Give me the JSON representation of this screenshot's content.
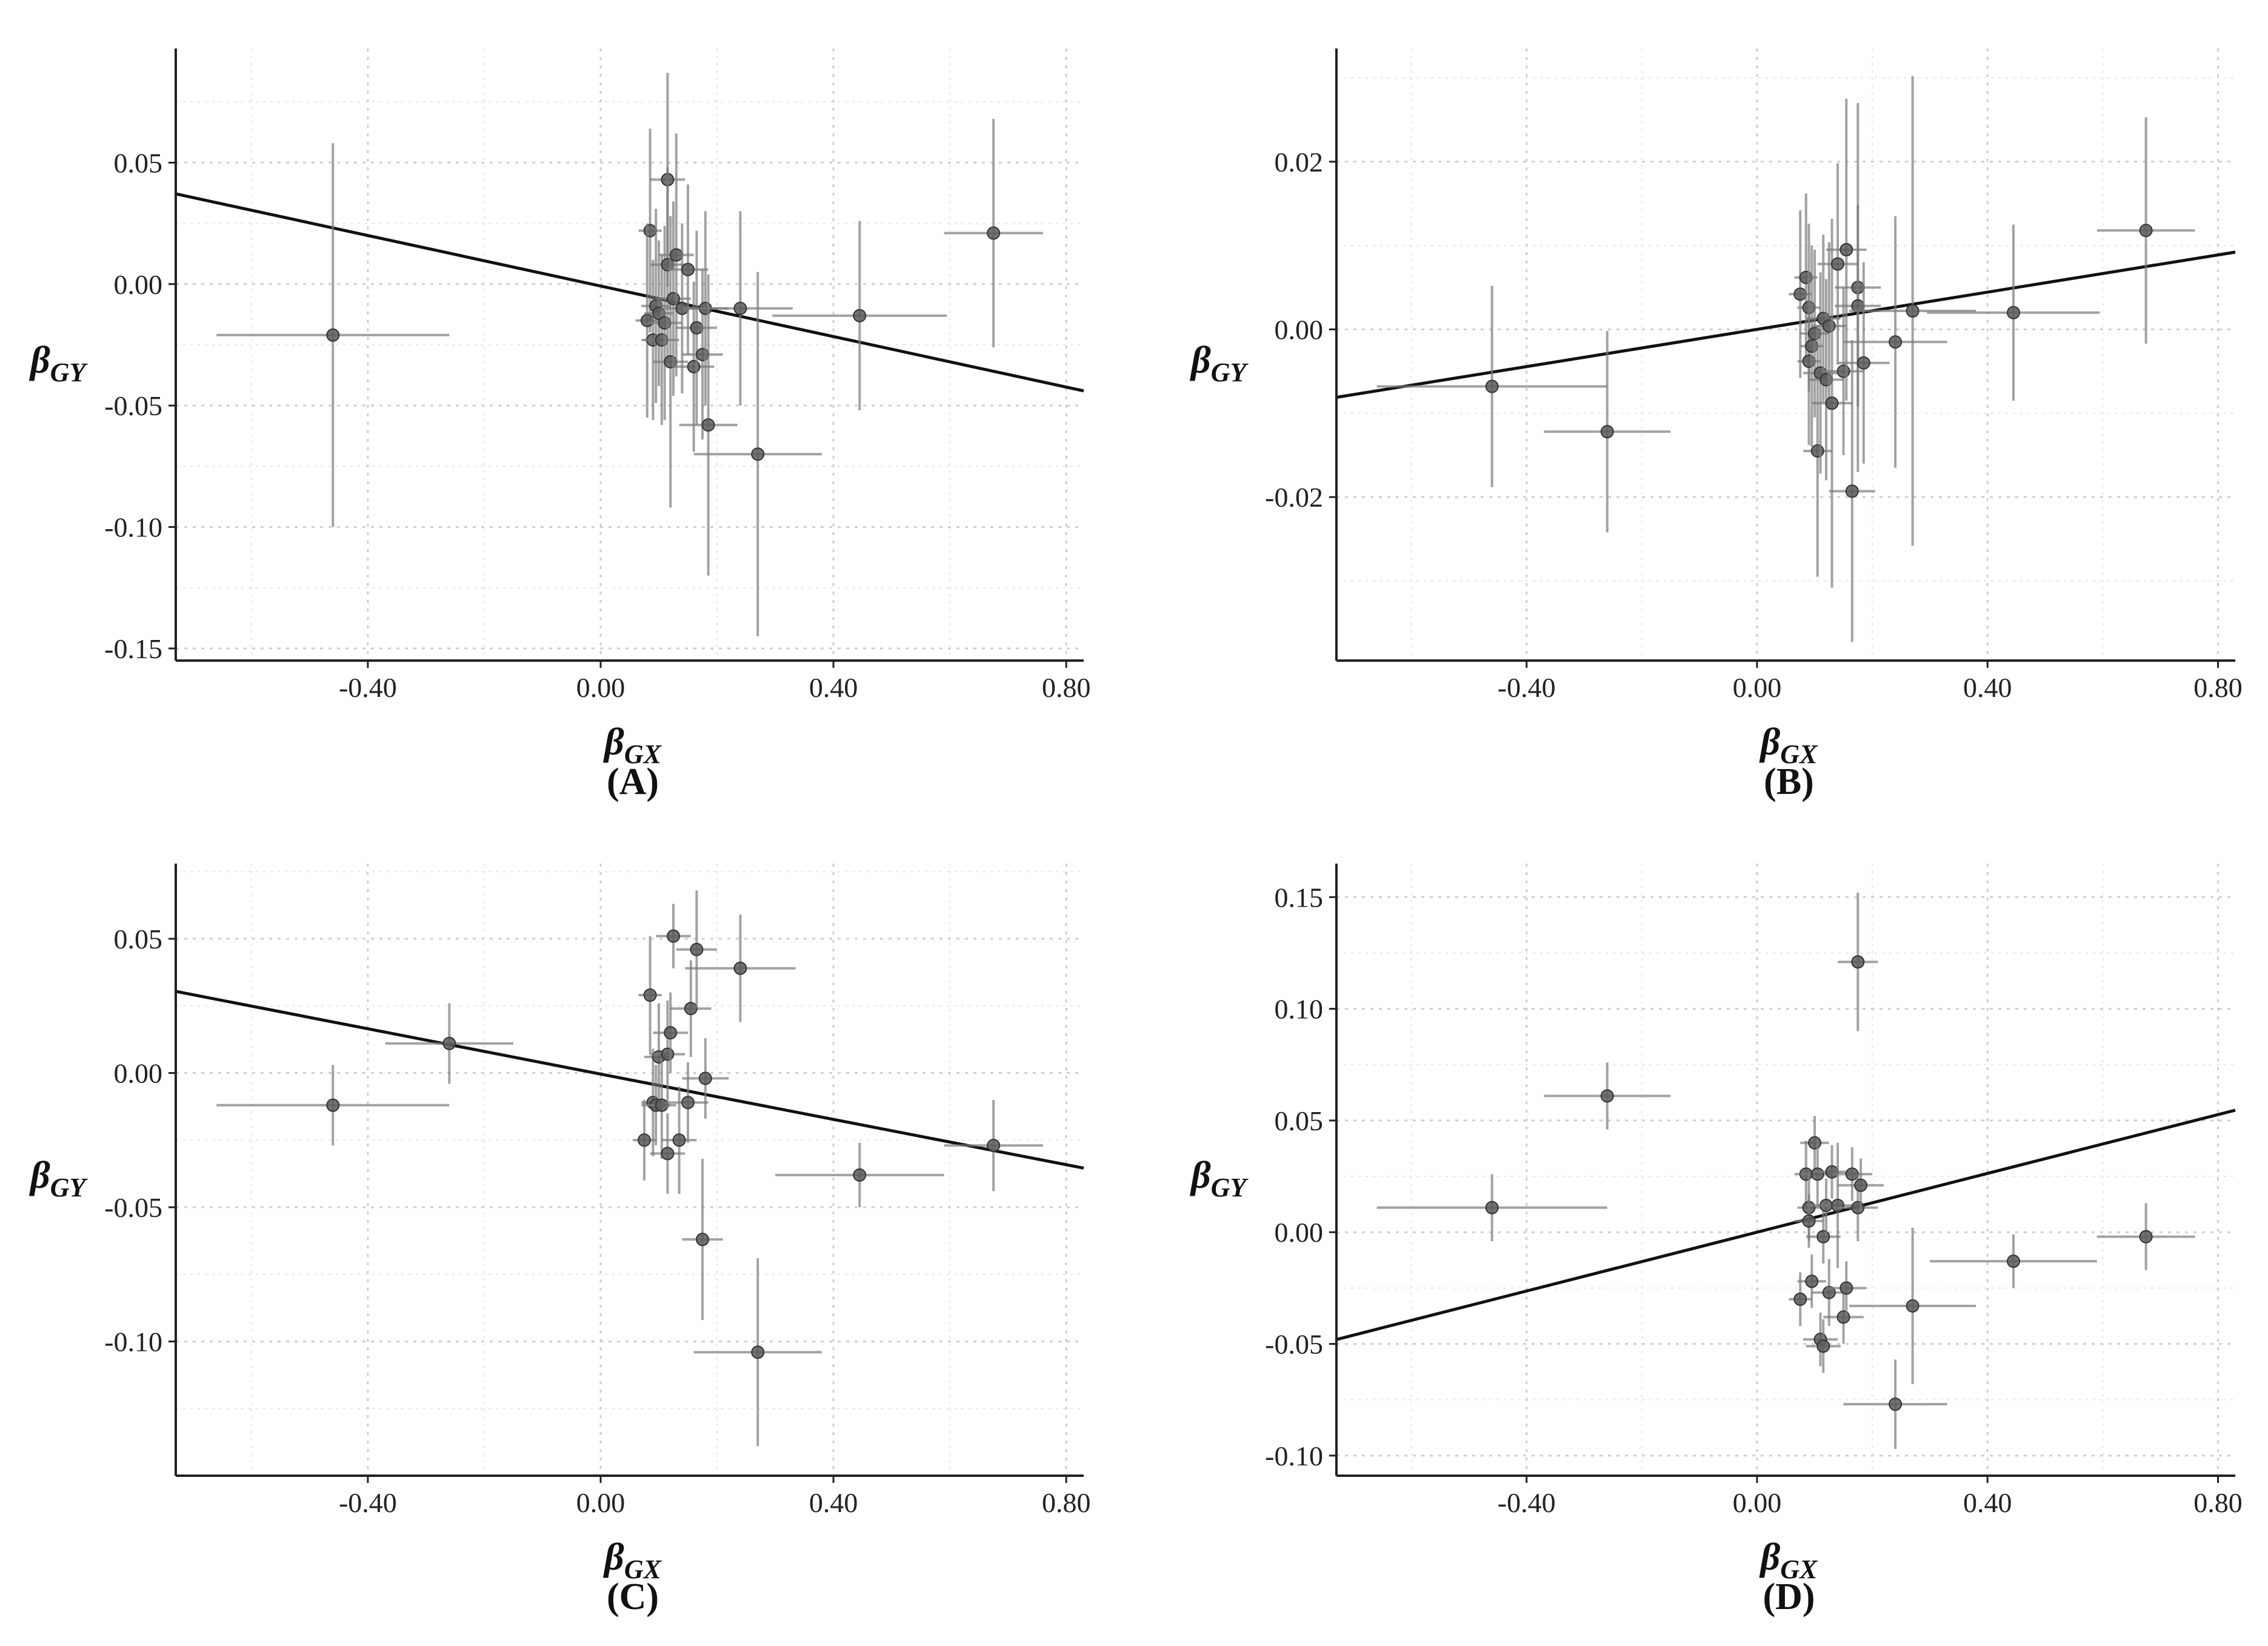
{
  "figure": {
    "colors": {
      "point": "#5a5a5a",
      "errorbar": "#7a7a7a",
      "fit": "#111111",
      "grid": "#cfcfcf",
      "axis": "#222222"
    }
  },
  "chart_data": [
    {
      "type": "scatter",
      "panel_label": "(A)",
      "xlabel": {
        "main": "β",
        "sub": "GX"
      },
      "ylabel": {
        "main": "β",
        "sub": "GY"
      },
      "xlim": [
        -0.73,
        0.83
      ],
      "ylim": [
        -0.155,
        0.097
      ],
      "xticks": [
        -0.4,
        0.0,
        0.4,
        0.8
      ],
      "xtick_labels": [
        "-0.40",
        "0.00",
        "0.40",
        "0.80"
      ],
      "yticks": [
        -0.15,
        -0.1,
        -0.05,
        0.0,
        0.05
      ],
      "ytick_labels": [
        "-0.15",
        "-0.10",
        "-0.05",
        "0.00",
        "0.05"
      ],
      "fit_line": {
        "slope": -0.052,
        "intercept": -0.0008
      },
      "points": [
        {
          "x": -0.46,
          "y": -0.021,
          "xse": 0.2,
          "yse": 0.079
        },
        {
          "x": 0.085,
          "y": 0.022,
          "xse": 0.02,
          "yse": 0.042
        },
        {
          "x": 0.08,
          "y": -0.015,
          "xse": 0.02,
          "yse": 0.04
        },
        {
          "x": 0.09,
          "y": -0.023,
          "xse": 0.02,
          "yse": 0.033
        },
        {
          "x": 0.095,
          "y": -0.009,
          "xse": 0.025,
          "yse": 0.04
        },
        {
          "x": 0.1,
          "y": -0.012,
          "xse": 0.025,
          "yse": 0.03
        },
        {
          "x": 0.105,
          "y": -0.023,
          "xse": 0.03,
          "yse": 0.035
        },
        {
          "x": 0.11,
          "y": -0.016,
          "xse": 0.03,
          "yse": 0.04
        },
        {
          "x": 0.115,
          "y": 0.043,
          "xse": 0.03,
          "yse": 0.044
        },
        {
          "x": 0.115,
          "y": 0.008,
          "xse": 0.03,
          "yse": 0.04
        },
        {
          "x": 0.12,
          "y": -0.032,
          "xse": 0.03,
          "yse": 0.06
        },
        {
          "x": 0.125,
          "y": -0.006,
          "xse": 0.03,
          "yse": 0.04
        },
        {
          "x": 0.13,
          "y": 0.012,
          "xse": 0.03,
          "yse": 0.05
        },
        {
          "x": 0.14,
          "y": -0.01,
          "xse": 0.03,
          "yse": 0.035
        },
        {
          "x": 0.15,
          "y": 0.006,
          "xse": 0.035,
          "yse": 0.035
        },
        {
          "x": 0.16,
          "y": -0.034,
          "xse": 0.035,
          "yse": 0.035
        },
        {
          "x": 0.165,
          "y": -0.018,
          "xse": 0.035,
          "yse": 0.04
        },
        {
          "x": 0.175,
          "y": -0.029,
          "xse": 0.035,
          "yse": 0.035
        },
        {
          "x": 0.18,
          "y": -0.01,
          "xse": 0.04,
          "yse": 0.04
        },
        {
          "x": 0.185,
          "y": -0.058,
          "xse": 0.05,
          "yse": 0.062
        },
        {
          "x": 0.24,
          "y": -0.01,
          "xse": 0.09,
          "yse": 0.04
        },
        {
          "x": 0.27,
          "y": -0.07,
          "xse": 0.11,
          "yse": 0.075
        },
        {
          "x": 0.445,
          "y": -0.013,
          "xse": 0.15,
          "yse": 0.039
        },
        {
          "x": 0.675,
          "y": 0.021,
          "xse": 0.085,
          "yse": 0.047
        }
      ]
    },
    {
      "type": "scatter",
      "panel_label": "(B)",
      "xlabel": {
        "main": "β",
        "sub": "GX"
      },
      "ylabel": {
        "main": "β",
        "sub": "GY"
      },
      "xlim": [
        -0.73,
        0.83
      ],
      "ylim": [
        -0.0395,
        0.0335
      ],
      "xticks": [
        -0.4,
        0.0,
        0.4,
        0.8
      ],
      "xtick_labels": [
        "-0.40",
        "0.00",
        "0.40",
        "0.80"
      ],
      "yticks": [
        -0.02,
        0.0,
        0.02
      ],
      "ytick_labels": [
        "-0.02",
        "0.00",
        "0.02"
      ],
      "fit_line": {
        "slope": 0.0111,
        "intercept": 0.0
      },
      "points": [
        {
          "x": -0.46,
          "y": -0.0068,
          "xse": 0.2,
          "yse": 0.012
        },
        {
          "x": -0.26,
          "y": -0.0122,
          "xse": 0.11,
          "yse": 0.012
        },
        {
          "x": 0.075,
          "y": 0.0042,
          "xse": 0.02,
          "yse": 0.01
        },
        {
          "x": 0.085,
          "y": 0.0062,
          "xse": 0.02,
          "yse": 0.01
        },
        {
          "x": 0.09,
          "y": 0.0026,
          "xse": 0.02,
          "yse": 0.01
        },
        {
          "x": 0.09,
          "y": -0.0038,
          "xse": 0.02,
          "yse": 0.01
        },
        {
          "x": 0.095,
          "y": -0.002,
          "xse": 0.02,
          "yse": 0.012
        },
        {
          "x": 0.1,
          "y": -0.0005,
          "xse": 0.025,
          "yse": 0.01
        },
        {
          "x": 0.105,
          "y": -0.0145,
          "xse": 0.025,
          "yse": 0.015
        },
        {
          "x": 0.11,
          "y": -0.0052,
          "xse": 0.03,
          "yse": 0.012
        },
        {
          "x": 0.115,
          "y": 0.0013,
          "xse": 0.03,
          "yse": 0.01
        },
        {
          "x": 0.12,
          "y": -0.006,
          "xse": 0.03,
          "yse": 0.012
        },
        {
          "x": 0.125,
          "y": 0.0004,
          "xse": 0.03,
          "yse": 0.01
        },
        {
          "x": 0.13,
          "y": -0.0088,
          "xse": 0.035,
          "yse": 0.022
        },
        {
          "x": 0.14,
          "y": 0.0078,
          "xse": 0.035,
          "yse": 0.012
        },
        {
          "x": 0.15,
          "y": -0.005,
          "xse": 0.035,
          "yse": 0.01
        },
        {
          "x": 0.155,
          "y": 0.0095,
          "xse": 0.035,
          "yse": 0.018
        },
        {
          "x": 0.165,
          "y": -0.0193,
          "xse": 0.04,
          "yse": 0.018
        },
        {
          "x": 0.175,
          "y": 0.005,
          "xse": 0.04,
          "yse": 0.022
        },
        {
          "x": 0.175,
          "y": 0.0028,
          "xse": 0.04,
          "yse": 0.012
        },
        {
          "x": 0.185,
          "y": -0.004,
          "xse": 0.045,
          "yse": 0.012
        },
        {
          "x": 0.24,
          "y": -0.0015,
          "xse": 0.09,
          "yse": 0.015
        },
        {
          "x": 0.27,
          "y": 0.0022,
          "xse": 0.11,
          "yse": 0.028
        },
        {
          "x": 0.445,
          "y": 0.002,
          "xse": 0.15,
          "yse": 0.0105
        },
        {
          "x": 0.675,
          "y": 0.0118,
          "xse": 0.085,
          "yse": 0.0135
        }
      ]
    },
    {
      "type": "scatter",
      "panel_label": "(C)",
      "xlabel": {
        "main": "β",
        "sub": "GX"
      },
      "ylabel": {
        "main": "β",
        "sub": "GY"
      },
      "xlim": [
        -0.73,
        0.83
      ],
      "ylim": [
        -0.15,
        0.078
      ],
      "xticks": [
        -0.4,
        0.0,
        0.4,
        0.8
      ],
      "xtick_labels": [
        "-0.40",
        "0.00",
        "0.40",
        "0.80"
      ],
      "yticks": [
        -0.1,
        -0.05,
        0.0,
        0.05
      ],
      "ytick_labels": [
        "-0.10",
        "-0.05",
        "0.00",
        "0.05"
      ],
      "fit_line": {
        "slope": -0.0422,
        "intercept": -0.0004
      },
      "points": [
        {
          "x": -0.46,
          "y": -0.012,
          "xse": 0.2,
          "yse": 0.015
        },
        {
          "x": -0.26,
          "y": 0.011,
          "xse": 0.11,
          "yse": 0.015
        },
        {
          "x": 0.075,
          "y": -0.025,
          "xse": 0.02,
          "yse": 0.015
        },
        {
          "x": 0.085,
          "y": 0.029,
          "xse": 0.02,
          "yse": 0.022
        },
        {
          "x": 0.09,
          "y": -0.011,
          "xse": 0.02,
          "yse": 0.02
        },
        {
          "x": 0.095,
          "y": -0.012,
          "xse": 0.025,
          "yse": 0.015
        },
        {
          "x": 0.1,
          "y": 0.006,
          "xse": 0.025,
          "yse": 0.02
        },
        {
          "x": 0.105,
          "y": -0.012,
          "xse": 0.025,
          "yse": 0.02
        },
        {
          "x": 0.115,
          "y": 0.007,
          "xse": 0.03,
          "yse": 0.02
        },
        {
          "x": 0.115,
          "y": -0.03,
          "xse": 0.03,
          "yse": 0.015
        },
        {
          "x": 0.12,
          "y": 0.015,
          "xse": 0.03,
          "yse": 0.015
        },
        {
          "x": 0.125,
          "y": 0.051,
          "xse": 0.03,
          "yse": 0.012
        },
        {
          "x": 0.135,
          "y": -0.025,
          "xse": 0.03,
          "yse": 0.02
        },
        {
          "x": 0.15,
          "y": -0.011,
          "xse": 0.035,
          "yse": 0.015
        },
        {
          "x": 0.155,
          "y": 0.024,
          "xse": 0.035,
          "yse": 0.018
        },
        {
          "x": 0.165,
          "y": 0.046,
          "xse": 0.035,
          "yse": 0.022
        },
        {
          "x": 0.175,
          "y": -0.062,
          "xse": 0.035,
          "yse": 0.03
        },
        {
          "x": 0.18,
          "y": -0.002,
          "xse": 0.04,
          "yse": 0.015
        },
        {
          "x": 0.24,
          "y": 0.039,
          "xse": 0.095,
          "yse": 0.02
        },
        {
          "x": 0.27,
          "y": -0.104,
          "xse": 0.11,
          "yse": 0.035
        },
        {
          "x": 0.445,
          "y": -0.038,
          "xse": 0.145,
          "yse": 0.012
        },
        {
          "x": 0.675,
          "y": -0.027,
          "xse": 0.085,
          "yse": 0.017
        }
      ]
    },
    {
      "type": "scatter",
      "panel_label": "(D)",
      "xlabel": {
        "main": "β",
        "sub": "GX"
      },
      "ylabel": {
        "main": "β",
        "sub": "GY"
      },
      "xlim": [
        -0.73,
        0.83
      ],
      "ylim": [
        -0.109,
        0.165
      ],
      "xticks": [
        -0.4,
        0.0,
        0.4,
        0.8
      ],
      "xtick_labels": [
        "-0.40",
        "0.00",
        "0.40",
        "0.80"
      ],
      "yticks": [
        -0.1,
        -0.05,
        0.0,
        0.05,
        0.1,
        0.15
      ],
      "ytick_labels": [
        "-0.10",
        "-0.05",
        "0.00",
        "0.05",
        "0.10",
        "0.15"
      ],
      "fit_line": {
        "slope": 0.0658,
        "intercept": 0.0
      },
      "points": [
        {
          "x": -0.46,
          "y": 0.011,
          "xse": 0.2,
          "yse": 0.015
        },
        {
          "x": -0.26,
          "y": 0.061,
          "xse": 0.11,
          "yse": 0.015
        },
        {
          "x": 0.075,
          "y": -0.03,
          "xse": 0.02,
          "yse": 0.012
        },
        {
          "x": 0.085,
          "y": 0.026,
          "xse": 0.02,
          "yse": 0.015
        },
        {
          "x": 0.09,
          "y": 0.011,
          "xse": 0.02,
          "yse": 0.015
        },
        {
          "x": 0.09,
          "y": 0.005,
          "xse": 0.025,
          "yse": 0.012
        },
        {
          "x": 0.095,
          "y": -0.022,
          "xse": 0.025,
          "yse": 0.012
        },
        {
          "x": 0.1,
          "y": 0.04,
          "xse": 0.025,
          "yse": 0.012
        },
        {
          "x": 0.105,
          "y": 0.026,
          "xse": 0.03,
          "yse": 0.015
        },
        {
          "x": 0.11,
          "y": -0.048,
          "xse": 0.03,
          "yse": 0.012
        },
        {
          "x": 0.115,
          "y": -0.002,
          "xse": 0.03,
          "yse": 0.012
        },
        {
          "x": 0.115,
          "y": -0.051,
          "xse": 0.03,
          "yse": 0.012
        },
        {
          "x": 0.12,
          "y": 0.012,
          "xse": 0.03,
          "yse": 0.012
        },
        {
          "x": 0.125,
          "y": -0.027,
          "xse": 0.03,
          "yse": 0.015
        },
        {
          "x": 0.13,
          "y": 0.027,
          "xse": 0.03,
          "yse": 0.012
        },
        {
          "x": 0.14,
          "y": 0.012,
          "xse": 0.035,
          "yse": 0.028
        },
        {
          "x": 0.15,
          "y": -0.038,
          "xse": 0.035,
          "yse": 0.012
        },
        {
          "x": 0.155,
          "y": -0.025,
          "xse": 0.035,
          "yse": 0.012
        },
        {
          "x": 0.165,
          "y": 0.026,
          "xse": 0.035,
          "yse": 0.012
        },
        {
          "x": 0.175,
          "y": 0.011,
          "xse": 0.035,
          "yse": 0.015
        },
        {
          "x": 0.175,
          "y": 0.121,
          "xse": 0.035,
          "yse": 0.031
        },
        {
          "x": 0.18,
          "y": 0.021,
          "xse": 0.04,
          "yse": 0.012
        },
        {
          "x": 0.24,
          "y": -0.077,
          "xse": 0.09,
          "yse": 0.02
        },
        {
          "x": 0.27,
          "y": -0.033,
          "xse": 0.11,
          "yse": 0.035
        },
        {
          "x": 0.445,
          "y": -0.013,
          "xse": 0.145,
          "yse": 0.012
        },
        {
          "x": 0.675,
          "y": -0.002,
          "xse": 0.085,
          "yse": 0.015
        }
      ]
    }
  ]
}
